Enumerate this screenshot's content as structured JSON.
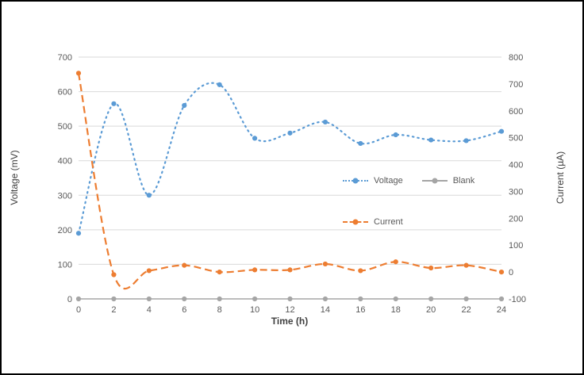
{
  "chart_data": {
    "type": "line",
    "x": [
      0,
      2,
      4,
      6,
      8,
      10,
      12,
      14,
      16,
      18,
      20,
      22,
      24
    ],
    "xlim": [
      0,
      24
    ],
    "series": [
      {
        "name": "Voltage",
        "axis": "left",
        "color": "#5B9BD5",
        "style": "dotted",
        "values": [
          190,
          565,
          300,
          560,
          620,
          465,
          480,
          512,
          450,
          475,
          460,
          458,
          485
        ]
      },
      {
        "name": "Blank",
        "axis": "left",
        "color": "#A5A5A5",
        "style": "solid",
        "values": [
          0,
          0,
          0,
          0,
          0,
          0,
          0,
          0,
          0,
          0,
          0,
          0,
          0
        ]
      },
      {
        "name": "Current",
        "axis": "right",
        "color": "#ED7D31",
        "style": "dashed",
        "values": [
          740,
          -10,
          5,
          25,
          0,
          8,
          8,
          30,
          5,
          38,
          15,
          25,
          0
        ]
      }
    ],
    "xlabel": "Time (h)",
    "ylabel_left": "Voltage (mV)",
    "ylabel_right": "Current (µA)",
    "ylim_left": [
      0,
      700
    ],
    "ylim_right": [
      -100,
      800
    ],
    "yticks_left": [
      0,
      100,
      200,
      300,
      400,
      500,
      600,
      700
    ],
    "yticks_right": [
      -100,
      0,
      100,
      200,
      300,
      400,
      500,
      600,
      700,
      800
    ],
    "grid": true,
    "grid_color": "#D9D9D9",
    "axis_line_color": "#BFBFBF",
    "text_color": "#595959",
    "legend_position": "inside-right"
  }
}
